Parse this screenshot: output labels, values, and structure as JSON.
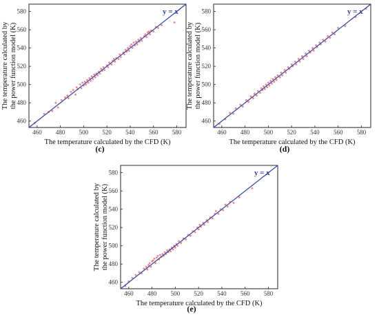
{
  "chart_data": [
    {
      "panel": "(c)",
      "type": "scatter",
      "xlabel": "The temperature calculated by the CFD (K)",
      "ylabel": [
        "The temperature calculated by",
        "the power function model (K)"
      ],
      "xlim": [
        453,
        588
      ],
      "ylim": [
        453,
        588
      ],
      "xticks": [
        "460",
        "480",
        "500",
        "520",
        "540",
        "560",
        "580"
      ],
      "yticks": [
        "460",
        "480",
        "500",
        "520",
        "540",
        "560",
        "580"
      ],
      "grid": false,
      "reference_line": {
        "label": "y = x",
        "color": "#2f3f9f"
      },
      "marker_color": "#e0727a",
      "points": [
        [
          458,
          458
        ],
        [
          466,
          468
        ],
        [
          470,
          470
        ],
        [
          473,
          471
        ],
        [
          476,
          480
        ],
        [
          478,
          475
        ],
        [
          481,
          483
        ],
        [
          484,
          486
        ],
        [
          486,
          488
        ],
        [
          487,
          485
        ],
        [
          489,
          492
        ],
        [
          491,
          494
        ],
        [
          493,
          489
        ],
        [
          494,
          497
        ],
        [
          495,
          495
        ],
        [
          497,
          500
        ],
        [
          498,
          496
        ],
        [
          499,
          502
        ],
        [
          500,
          499
        ],
        [
          501,
          503
        ],
        [
          502,
          500
        ],
        [
          503,
          505
        ],
        [
          504,
          502
        ],
        [
          505,
          507
        ],
        [
          506,
          504
        ],
        [
          507,
          509
        ],
        [
          508,
          506
        ],
        [
          509,
          511
        ],
        [
          510,
          508
        ],
        [
          511,
          512
        ],
        [
          512,
          510
        ],
        [
          513,
          514
        ],
        [
          514,
          512
        ],
        [
          515,
          517
        ],
        [
          516,
          515
        ],
        [
          517,
          519
        ],
        [
          518,
          516
        ],
        [
          520,
          521
        ],
        [
          521,
          519
        ],
        [
          522,
          524
        ],
        [
          524,
          522
        ],
        [
          525,
          526
        ],
        [
          526,
          528
        ],
        [
          527,
          525
        ],
        [
          528,
          529
        ],
        [
          530,
          528
        ],
        [
          531,
          533
        ],
        [
          532,
          530
        ],
        [
          534,
          535
        ],
        [
          535,
          533
        ],
        [
          536,
          538
        ],
        [
          537,
          536
        ],
        [
          538,
          540
        ],
        [
          539,
          537
        ],
        [
          540,
          542
        ],
        [
          541,
          544
        ],
        [
          542,
          540
        ],
        [
          543,
          546
        ],
        [
          544,
          543
        ],
        [
          545,
          547
        ],
        [
          546,
          544
        ],
        [
          547,
          549
        ],
        [
          548,
          547
        ],
        [
          549,
          551
        ],
        [
          550,
          548
        ],
        [
          552,
          553
        ],
        [
          553,
          555
        ],
        [
          554,
          552
        ],
        [
          555,
          557
        ],
        [
          556,
          558
        ],
        [
          557,
          555
        ],
        [
          558,
          559
        ],
        [
          560,
          558
        ],
        [
          562,
          563
        ],
        [
          564,
          562
        ],
        [
          567,
          565
        ],
        [
          578,
          568
        ]
      ]
    },
    {
      "panel": "(d)",
      "type": "scatter",
      "xlabel": "The temperature calculated by the CFD (K)",
      "ylabel": [
        "The temperature calculated by",
        "the power function model (K)"
      ],
      "xlim": [
        453,
        588
      ],
      "ylim": [
        453,
        588
      ],
      "xticks": [
        "460",
        "480",
        "500",
        "520",
        "540",
        "560",
        "580"
      ],
      "yticks": [
        "460",
        "480",
        "500",
        "520",
        "540",
        "560",
        "580"
      ],
      "grid": false,
      "reference_line": {
        "label": "y = x",
        "color": "#2f3f9f"
      },
      "marker_color": "#e0727a",
      "points": [
        [
          458,
          457
        ],
        [
          463,
          462
        ],
        [
          467,
          469
        ],
        [
          470,
          468
        ],
        [
          472,
          474
        ],
        [
          476,
          478
        ],
        [
          478,
          476
        ],
        [
          481,
          483
        ],
        [
          483,
          481
        ],
        [
          485,
          487
        ],
        [
          487,
          485
        ],
        [
          488,
          490
        ],
        [
          490,
          488
        ],
        [
          491,
          493
        ],
        [
          493,
          491
        ],
        [
          494,
          496
        ],
        [
          495,
          494
        ],
        [
          496,
          498
        ],
        [
          497,
          495
        ],
        [
          498,
          500
        ],
        [
          499,
          497
        ],
        [
          500,
          502
        ],
        [
          501,
          499
        ],
        [
          502,
          504
        ],
        [
          503,
          501
        ],
        [
          504,
          506
        ],
        [
          505,
          503
        ],
        [
          506,
          508
        ],
        [
          507,
          505
        ],
        [
          508,
          510
        ],
        [
          510,
          508
        ],
        [
          511,
          513
        ],
        [
          512,
          510
        ],
        [
          514,
          516
        ],
        [
          515,
          513
        ],
        [
          517,
          519
        ],
        [
          518,
          517
        ],
        [
          520,
          522
        ],
        [
          521,
          520
        ],
        [
          523,
          525
        ],
        [
          524,
          522
        ],
        [
          526,
          528
        ],
        [
          527,
          525
        ],
        [
          529,
          531
        ],
        [
          530,
          528
        ],
        [
          532,
          534
        ],
        [
          533,
          531
        ],
        [
          535,
          537
        ],
        [
          536,
          535
        ],
        [
          538,
          540
        ],
        [
          539,
          537
        ],
        [
          541,
          543
        ],
        [
          542,
          541
        ],
        [
          544,
          546
        ],
        [
          545,
          544
        ],
        [
          547,
          549
        ],
        [
          549,
          547
        ],
        [
          551,
          553
        ],
        [
          553,
          551
        ],
        [
          555,
          557
        ],
        [
          557,
          555
        ],
        [
          560,
          562
        ],
        [
          566,
          564
        ],
        [
          575,
          574
        ],
        [
          584,
          583
        ]
      ]
    },
    {
      "panel": "(e)",
      "type": "scatter",
      "xlabel": "The temperature calculated by the CFD (K)",
      "ylabel": [
        "The temperature calculated by",
        "the power function model (K)"
      ],
      "xlim": [
        453,
        588
      ],
      "ylim": [
        453,
        588
      ],
      "xticks": [
        "460",
        "480",
        "500",
        "520",
        "540",
        "560",
        "580"
      ],
      "yticks": [
        "460",
        "480",
        "500",
        "520",
        "540",
        "560",
        "580"
      ],
      "grid": false,
      "reference_line": {
        "label": "y = x",
        "color": "#2f3f9f"
      },
      "marker_color": "#e0727a",
      "points": [
        [
          457,
          456
        ],
        [
          460,
          461
        ],
        [
          463,
          465
        ],
        [
          466,
          468
        ],
        [
          469,
          471
        ],
        [
          471,
          470
        ],
        [
          473,
          475
        ],
        [
          475,
          477
        ],
        [
          476,
          474
        ],
        [
          477,
          479
        ],
        [
          478,
          481
        ],
        [
          479,
          477
        ],
        [
          480,
          483
        ],
        [
          481,
          484
        ],
        [
          482,
          486
        ],
        [
          483,
          481
        ],
        [
          484,
          487
        ],
        [
          485,
          489
        ],
        [
          486,
          485
        ],
        [
          487,
          490
        ],
        [
          488,
          488
        ],
        [
          489,
          491
        ],
        [
          490,
          489
        ],
        [
          491,
          493
        ],
        [
          492,
          491
        ],
        [
          493,
          495
        ],
        [
          494,
          493
        ],
        [
          495,
          496
        ],
        [
          496,
          494
        ],
        [
          497,
          498
        ],
        [
          498,
          496
        ],
        [
          499,
          500
        ],
        [
          500,
          498
        ],
        [
          501,
          502
        ],
        [
          502,
          500
        ],
        [
          503,
          505
        ],
        [
          505,
          503
        ],
        [
          507,
          508
        ],
        [
          509,
          507
        ],
        [
          511,
          512
        ],
        [
          513,
          511
        ],
        [
          515,
          516
        ],
        [
          517,
          515
        ],
        [
          519,
          520
        ],
        [
          520,
          518
        ],
        [
          521,
          523
        ],
        [
          522,
          521
        ],
        [
          524,
          525
        ],
        [
          525,
          523
        ],
        [
          527,
          528
        ],
        [
          528,
          526
        ],
        [
          530,
          531
        ],
        [
          532,
          530
        ],
        [
          534,
          535
        ],
        [
          535,
          538
        ],
        [
          537,
          535
        ],
        [
          539,
          540
        ],
        [
          541,
          539
        ],
        [
          543,
          545
        ],
        [
          545,
          543
        ],
        [
          547,
          548
        ],
        [
          550,
          547
        ],
        [
          555,
          553
        ],
        [
          566,
          563
        ]
      ]
    }
  ]
}
